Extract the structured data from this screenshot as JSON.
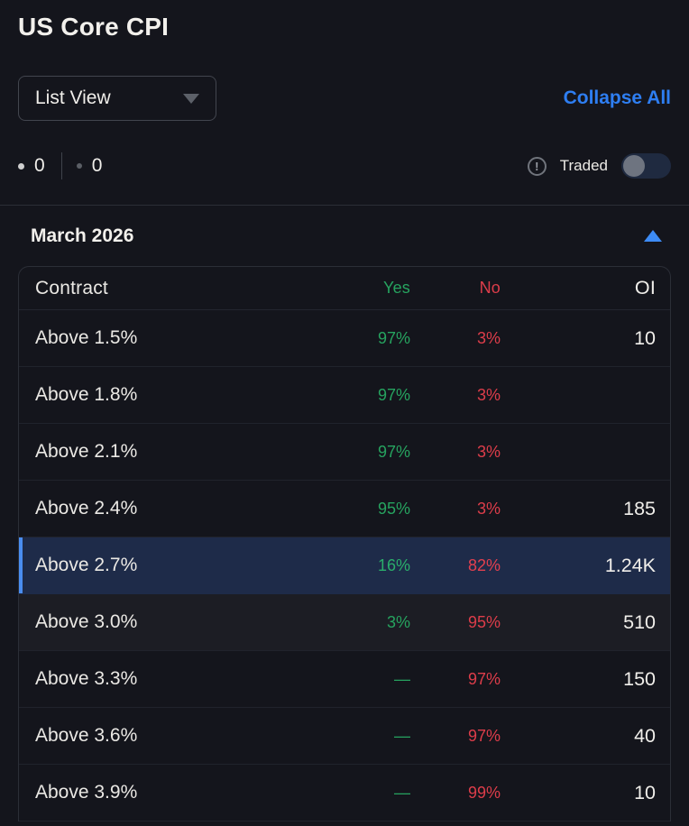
{
  "header": {
    "title": "US Core CPI"
  },
  "toolbar": {
    "view_selector_value": "List View",
    "collapse_all_label": "Collapse All"
  },
  "status_bar": {
    "counter_primary": "0",
    "counter_secondary": "0",
    "info_icon": "exclamation-circle",
    "traded_label": "Traded",
    "traded_enabled": false
  },
  "section": {
    "title": "March 2026",
    "expanded": true
  },
  "table": {
    "columns": {
      "contract": "Contract",
      "yes": "Yes",
      "no": "No",
      "oi": "OI"
    },
    "rows": [
      {
        "contract": "Above 1.5%",
        "yes": "97%",
        "no": "3%",
        "oi": "10",
        "selected": false,
        "highlighted": false
      },
      {
        "contract": "Above 1.8%",
        "yes": "97%",
        "no": "3%",
        "oi": "",
        "selected": false,
        "highlighted": false
      },
      {
        "contract": "Above 2.1%",
        "yes": "97%",
        "no": "3%",
        "oi": "",
        "selected": false,
        "highlighted": false
      },
      {
        "contract": "Above 2.4%",
        "yes": "95%",
        "no": "3%",
        "oi": "185",
        "selected": false,
        "highlighted": false
      },
      {
        "contract": "Above 2.7%",
        "yes": "16%",
        "no": "82%",
        "oi": "1.24K",
        "selected": true,
        "highlighted": false
      },
      {
        "contract": "Above 3.0%",
        "yes": "3%",
        "no": "95%",
        "oi": "510",
        "selected": false,
        "highlighted": true
      },
      {
        "contract": "Above 3.3%",
        "yes": "—",
        "no": "97%",
        "oi": "150",
        "selected": false,
        "highlighted": false
      },
      {
        "contract": "Above 3.6%",
        "yes": "—",
        "no": "97%",
        "oi": "40",
        "selected": false,
        "highlighted": false
      },
      {
        "contract": "Above 3.9%",
        "yes": "—",
        "no": "99%",
        "oi": "10",
        "selected": false,
        "highlighted": false
      }
    ]
  },
  "colors": {
    "page_bg": "#14151c",
    "accent_blue": "#2e7ef2",
    "yes_green": "#26a35f",
    "no_red": "#dd3d4a",
    "selected_row_bg": "#1e2b49",
    "selected_row_bar": "#4a8df0",
    "muted_text": "#8b8e96"
  }
}
